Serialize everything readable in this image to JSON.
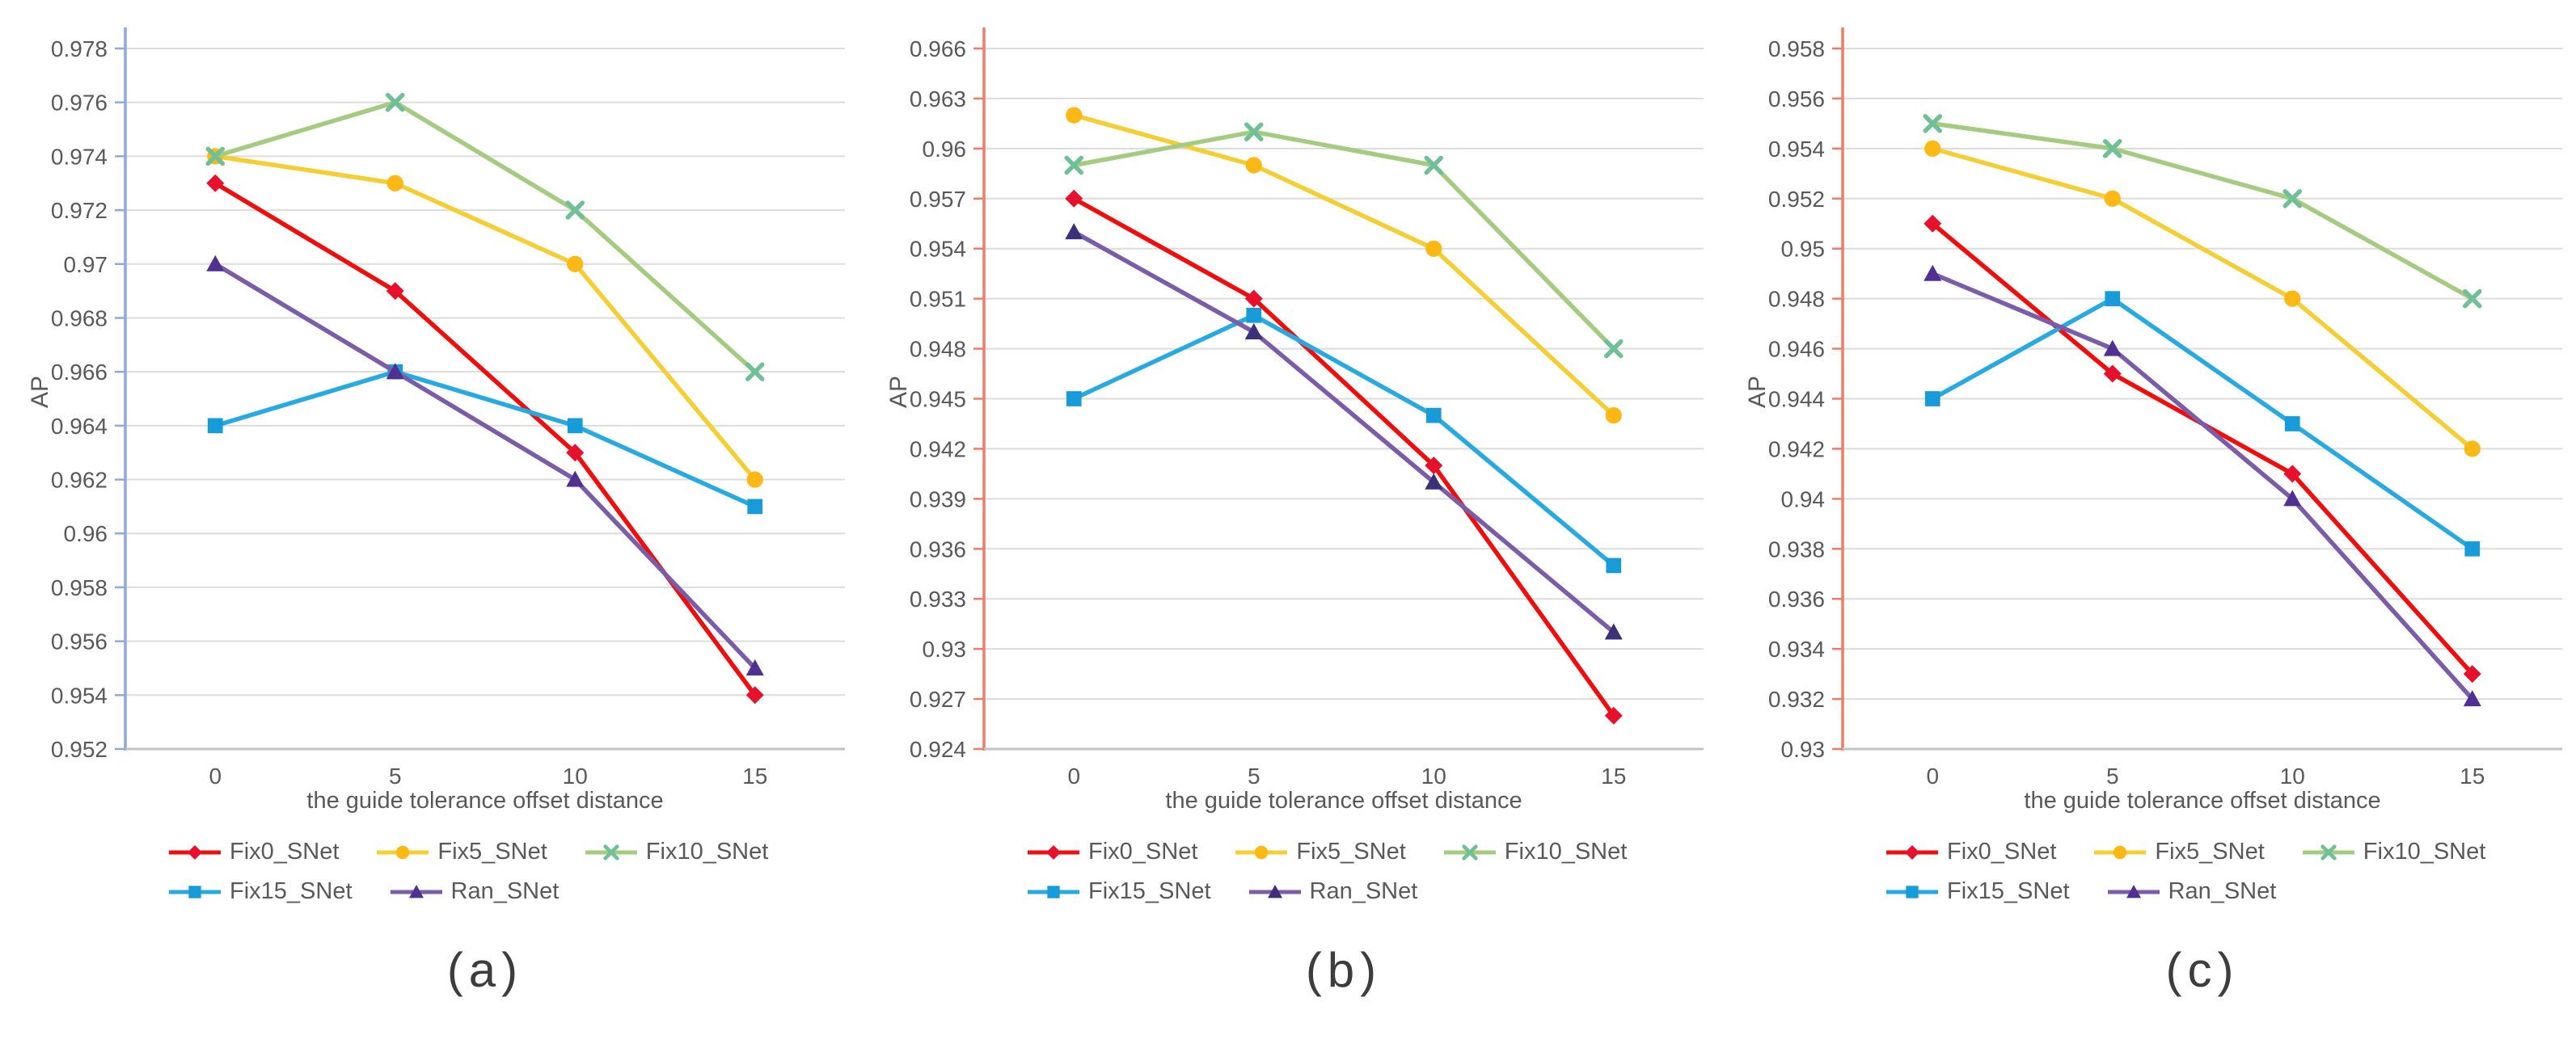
{
  "figure": {
    "xlabel": "the guide tolerance offset distance",
    "ylabel": "AP",
    "legend_rows": [
      [
        "Fix0_SNet",
        "Fix5_SNet",
        "Fix10_SNet"
      ],
      [
        "Fix15_SNet",
        "Ran_SNet"
      ]
    ],
    "colors": {
      "grid": "#DCDCDC",
      "x_axis_line": "#C3C3C3",
      "tick_text": "#595959",
      "caption_text": "#3D3D3D",
      "panel_a_y_axis": "#8EA9DB",
      "panel_bc_y_axis": "#F07B66"
    }
  },
  "chart_data": [
    {
      "type": "line",
      "caption": "(a)",
      "xlabel": "the guide tolerance offset distance",
      "ylabel": "AP",
      "x": [
        0,
        5,
        10,
        15
      ],
      "xticklabels": [
        "0",
        "5",
        "10",
        "15"
      ],
      "ylim": [
        0.952,
        0.978
      ],
      "ytick_step": 0.002,
      "yticklabels": [
        "0.952",
        "0.954",
        "0.956",
        "0.958",
        "0.96",
        "0.962",
        "0.964",
        "0.966",
        "0.968",
        "0.97",
        "0.972",
        "0.974",
        "0.976",
        "0.978"
      ],
      "grid": true,
      "legend_position": "bottom",
      "axis_color": "#8EA9DB",
      "series": [
        {
          "name": "Fix0_SNet",
          "marker": "diamond",
          "line_color": "#F20D0D",
          "marker_color": "#E8112D",
          "values": [
            0.973,
            0.969,
            0.963,
            0.954
          ]
        },
        {
          "name": "Fix5_SNet",
          "marker": "circle",
          "line_color": "#F5CE33",
          "marker_color": "#FCB815",
          "values": [
            0.974,
            0.973,
            0.97,
            0.962
          ]
        },
        {
          "name": "Fix10_SNet",
          "marker": "x",
          "line_color": "#A5CB80",
          "marker_color": "#6FBF97",
          "values": [
            0.974,
            0.976,
            0.972,
            0.966
          ]
        },
        {
          "name": "Fix15_SNet",
          "marker": "square",
          "line_color": "#27AAE1",
          "marker_color": "#189CD9",
          "values": [
            0.964,
            0.966,
            0.964,
            0.961
          ]
        },
        {
          "name": "Ran_SNet",
          "marker": "triangle",
          "line_color": "#7A5CA8",
          "marker_color": "#503090",
          "values": [
            0.97,
            0.966,
            0.962,
            0.955
          ]
        }
      ]
    },
    {
      "type": "line",
      "caption": "(b)",
      "xlabel": "the guide tolerance offset distance",
      "ylabel": "AP",
      "x": [
        0,
        5,
        10,
        15
      ],
      "xticklabels": [
        "0",
        "5",
        "10",
        "15"
      ],
      "ylim": [
        0.924,
        0.966
      ],
      "ytick_step": 0.003,
      "yticklabels": [
        "0.924",
        "0.927",
        "0.93",
        "0.933",
        "0.936",
        "0.939",
        "0.942",
        "0.945",
        "0.948",
        "0.951",
        "0.954",
        "0.957",
        "0.96",
        "0.963",
        "0.966"
      ],
      "grid": true,
      "legend_position": "bottom",
      "axis_color": "#F07B66",
      "series": [
        {
          "name": "Fix0_SNet",
          "marker": "diamond",
          "line_color": "#F20D0D",
          "marker_color": "#E8112D",
          "values": [
            0.957,
            0.951,
            0.941,
            0.926
          ]
        },
        {
          "name": "Fix5_SNet",
          "marker": "circle",
          "line_color": "#F5CE33",
          "marker_color": "#FCB815",
          "values": [
            0.962,
            0.959,
            0.954,
            0.944
          ]
        },
        {
          "name": "Fix10_SNet",
          "marker": "x",
          "line_color": "#A5CB80",
          "marker_color": "#6FBF97",
          "values": [
            0.959,
            0.961,
            0.959,
            0.948
          ]
        },
        {
          "name": "Fix15_SNet",
          "marker": "square",
          "line_color": "#27AAE1",
          "marker_color": "#189CD9",
          "values": [
            0.945,
            0.95,
            0.944,
            0.935
          ]
        },
        {
          "name": "Ran_SNet",
          "marker": "triangle",
          "line_color": "#7A5CA8",
          "marker_color": "#3C3178",
          "values": [
            0.955,
            0.949,
            0.94,
            0.931
          ]
        }
      ]
    },
    {
      "type": "line",
      "caption": "(c)",
      "xlabel": "the guide tolerance offset distance",
      "ylabel": "AP",
      "x": [
        0,
        5,
        10,
        15
      ],
      "xticklabels": [
        "0",
        "5",
        "10",
        "15"
      ],
      "ylim": [
        0.93,
        0.958
      ],
      "ytick_step": 0.002,
      "yticklabels": [
        "0.93",
        "0.932",
        "0.934",
        "0.936",
        "0.938",
        "0.94",
        "0.942",
        "0.944",
        "0.946",
        "0.948",
        "0.95",
        "0.952",
        "0.954",
        "0.956",
        "0.958"
      ],
      "grid": true,
      "legend_position": "bottom",
      "axis_color": "#F07B66",
      "series": [
        {
          "name": "Fix0_SNet",
          "marker": "diamond",
          "line_color": "#F20D0D",
          "marker_color": "#E8112D",
          "values": [
            0.951,
            0.945,
            0.941,
            0.933
          ]
        },
        {
          "name": "Fix5_SNet",
          "marker": "circle",
          "line_color": "#F5CE33",
          "marker_color": "#FCB815",
          "values": [
            0.954,
            0.952,
            0.948,
            0.942
          ]
        },
        {
          "name": "Fix10_SNet",
          "marker": "x",
          "line_color": "#A5CB80",
          "marker_color": "#6FBF97",
          "values": [
            0.955,
            0.954,
            0.952,
            0.948
          ]
        },
        {
          "name": "Fix15_SNet",
          "marker": "square",
          "line_color": "#27AAE1",
          "marker_color": "#189CD9",
          "values": [
            0.944,
            0.948,
            0.943,
            0.938
          ]
        },
        {
          "name": "Ran_SNet",
          "marker": "triangle",
          "line_color": "#7A5CA8",
          "marker_color": "#503090",
          "values": [
            0.949,
            0.946,
            0.94,
            0.932
          ]
        }
      ]
    }
  ]
}
